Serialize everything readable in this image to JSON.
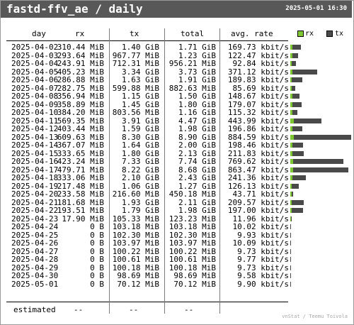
{
  "header": {
    "title": "fastd-ffv_ae / daily",
    "timestamp": "2025-05-01 16:30"
  },
  "columns": {
    "day": "day",
    "rx": "rx",
    "tx": "tx",
    "total": "total",
    "avg": "avg. rate"
  },
  "legend": {
    "rx": "rx",
    "tx": "tx",
    "rx_color": "#7dc832",
    "tx_color": "#4a4a4a"
  },
  "rows": [
    {
      "day": "2025-04-02",
      "rx": "310.44 MiB",
      "tx": "1.40 GiB",
      "total": "1.71 GiB",
      "avg": "169.73 kbit/s",
      "rx_frac": 0.025,
      "tx_frac": 0.11
    },
    {
      "day": "2025-04-03",
      "rx": "293.64 MiB",
      "tx": "967.77 MiB",
      "total": "1.23 GiB",
      "avg": "122.47 kbit/s",
      "rx_frac": 0.023,
      "tx_frac": 0.072
    },
    {
      "day": "2025-04-04",
      "rx": "243.91 MiB",
      "tx": "712.31 MiB",
      "total": "956.21 MiB",
      "avg": "92.84 kbit/s",
      "rx_frac": 0.019,
      "tx_frac": 0.053
    },
    {
      "day": "2025-04-05",
      "rx": "405.23 MiB",
      "tx": "3.34 GiB",
      "total": "3.73 GiB",
      "avg": "371.12 kbit/s",
      "rx_frac": 0.031,
      "tx_frac": 0.31
    },
    {
      "day": "2025-04-06",
      "rx": "286.88 MiB",
      "tx": "1.63 GiB",
      "total": "1.91 GiB",
      "avg": "189.83 kbit/s",
      "rx_frac": 0.022,
      "tx_frac": 0.13
    },
    {
      "day": "2025-04-07",
      "rx": "282.75 MiB",
      "tx": "599.88 MiB",
      "total": "882.63 MiB",
      "avg": "85.69 kbit/s",
      "rx_frac": 0.022,
      "tx_frac": 0.045
    },
    {
      "day": "2025-04-08",
      "rx": "356.94 MiB",
      "tx": "1.15 GiB",
      "total": "1.50 GiB",
      "avg": "148.67 kbit/s",
      "rx_frac": 0.028,
      "tx_frac": 0.09
    },
    {
      "day": "2025-04-09",
      "rx": "358.89 MiB",
      "tx": "1.45 GiB",
      "total": "1.80 GiB",
      "avg": "179.07 kbit/s",
      "rx_frac": 0.028,
      "tx_frac": 0.115
    },
    {
      "day": "2025-04-10",
      "rx": "384.20 MiB",
      "tx": "803.56 MiB",
      "total": "1.16 GiB",
      "avg": "115.32 kbit/s",
      "rx_frac": 0.03,
      "tx_frac": 0.06
    },
    {
      "day": "2025-04-11",
      "rx": "569.35 MiB",
      "tx": "3.91 GiB",
      "total": "4.47 GiB",
      "avg": "443.99 kbit/s",
      "rx_frac": 0.045,
      "tx_frac": 0.35
    },
    {
      "day": "2025-04-12",
      "rx": "403.44 MiB",
      "tx": "1.59 GiB",
      "total": "1.98 GiB",
      "avg": "196.86 kbit/s",
      "rx_frac": 0.031,
      "tx_frac": 0.125
    },
    {
      "day": "2025-04-13",
      "rx": "609.63 MiB",
      "tx": "8.30 GiB",
      "total": "8.90 GiB",
      "avg": "884.59 kbit/s",
      "rx_frac": 0.048,
      "tx_frac": 0.72
    },
    {
      "day": "2025-04-14",
      "rx": "367.07 MiB",
      "tx": "1.64 GiB",
      "total": "2.00 GiB",
      "avg": "198.46 kbit/s",
      "rx_frac": 0.029,
      "tx_frac": 0.13
    },
    {
      "day": "2025-04-15",
      "rx": "333.65 MiB",
      "tx": "1.80 GiB",
      "total": "2.13 GiB",
      "avg": "211.83 kbit/s",
      "rx_frac": 0.026,
      "tx_frac": 0.145
    },
    {
      "day": "2025-04-16",
      "rx": "423.24 MiB",
      "tx": "7.33 GiB",
      "total": "7.74 GiB",
      "avg": "769.62 kbit/s",
      "rx_frac": 0.033,
      "tx_frac": 0.63
    },
    {
      "day": "2025-04-17",
      "rx": "479.71 MiB",
      "tx": "8.22 GiB",
      "total": "8.68 GiB",
      "avg": "863.47 kbit/s",
      "rx_frac": 0.037,
      "tx_frac": 0.7
    },
    {
      "day": "2025-04-18",
      "rx": "333.06 MiB",
      "tx": "2.10 GiB",
      "total": "2.43 GiB",
      "avg": "241.36 kbit/s",
      "rx_frac": 0.026,
      "tx_frac": 0.17
    },
    {
      "day": "2025-04-19",
      "rx": "217.48 MiB",
      "tx": "1.06 GiB",
      "total": "1.27 GiB",
      "avg": "126.13 kbit/s",
      "rx_frac": 0.017,
      "tx_frac": 0.085
    },
    {
      "day": "2025-04-20",
      "rx": "233.58 MiB",
      "tx": "216.60 MiB",
      "total": "450.18 MiB",
      "avg": "43.71 kbit/s",
      "rx_frac": 0.018,
      "tx_frac": 0.016
    },
    {
      "day": "2025-04-21",
      "rx": "181.68 MiB",
      "tx": "1.93 GiB",
      "total": "2.11 GiB",
      "avg": "209.57 kbit/s",
      "rx_frac": 0.014,
      "tx_frac": 0.155
    },
    {
      "day": "2025-04-22",
      "rx": "193.51 MiB",
      "tx": "1.79 GiB",
      "total": "1.98 GiB",
      "avg": "197.00 kbit/s",
      "rx_frac": 0.015,
      "tx_frac": 0.14
    },
    {
      "day": "2025-04-23",
      "rx": "17.90 MiB",
      "tx": "105.33 MiB",
      "total": "123.23 MiB",
      "avg": "11.96 kbit/s",
      "rx_frac": 0.0015,
      "tx_frac": 0.008
    },
    {
      "day": "2025-04-24",
      "rx": "0 B",
      "tx": "103.18 MiB",
      "total": "103.18 MiB",
      "avg": "10.02 kbit/s",
      "rx_frac": 0,
      "tx_frac": 0.008
    },
    {
      "day": "2025-04-25",
      "rx": "0 B",
      "tx": "102.30 MiB",
      "total": "102.30 MiB",
      "avg": "9.93 kbit/s",
      "rx_frac": 0,
      "tx_frac": 0.008
    },
    {
      "day": "2025-04-26",
      "rx": "0 B",
      "tx": "103.97 MiB",
      "total": "103.97 MiB",
      "avg": "10.09 kbit/s",
      "rx_frac": 0,
      "tx_frac": 0.008
    },
    {
      "day": "2025-04-27",
      "rx": "0 B",
      "tx": "100.22 MiB",
      "total": "100.22 MiB",
      "avg": "9.73 kbit/s",
      "rx_frac": 0,
      "tx_frac": 0.008
    },
    {
      "day": "2025-04-28",
      "rx": "0 B",
      "tx": "100.61 MiB",
      "total": "100.61 MiB",
      "avg": "9.77 kbit/s",
      "rx_frac": 0,
      "tx_frac": 0.008
    },
    {
      "day": "2025-04-29",
      "rx": "0 B",
      "tx": "100.18 MiB",
      "total": "100.18 MiB",
      "avg": "9.73 kbit/s",
      "rx_frac": 0,
      "tx_frac": 0.008
    },
    {
      "day": "2025-04-30",
      "rx": "0 B",
      "tx": "98.69 MiB",
      "total": "98.69 MiB",
      "avg": "9.58 kbit/s",
      "rx_frac": 0,
      "tx_frac": 0.008
    },
    {
      "day": "2025-05-01",
      "rx": "0 B",
      "tx": "70.12 MiB",
      "total": "70.12 MiB",
      "avg": "9.90 kbit/s",
      "rx_frac": 0,
      "tx_frac": 0.008
    }
  ],
  "footer": {
    "label": "estimated",
    "rx": "--",
    "tx": "--",
    "total": "--"
  },
  "credit": "vnStat / Teemu Toivola"
}
